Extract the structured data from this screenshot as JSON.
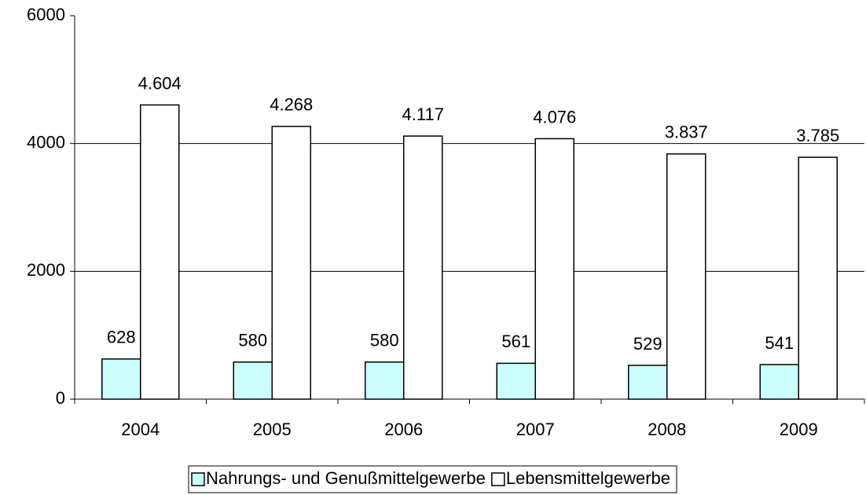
{
  "chart_data": {
    "type": "bar",
    "categories": [
      "2004",
      "2005",
      "2006",
      "2007",
      "2008",
      "2009"
    ],
    "series": [
      {
        "name": "Nahrungs- und Genußmittelgewerbe",
        "color": "#ccffff",
        "values": [
          628,
          580,
          580,
          561,
          529,
          541
        ]
      },
      {
        "name": "Lebensmittelgewerbe",
        "color": "#ffffff",
        "values": [
          4604,
          4268,
          4117,
          4076,
          3837,
          3785
        ],
        "value_labels": [
          "4.604",
          "4.268",
          "4.117",
          "4.076",
          "3.837",
          "3.785"
        ]
      }
    ],
    "ylim": [
      0,
      6000
    ],
    "yticks": [
      0,
      2000,
      4000,
      6000
    ],
    "grid": true,
    "legend": "bottom"
  }
}
